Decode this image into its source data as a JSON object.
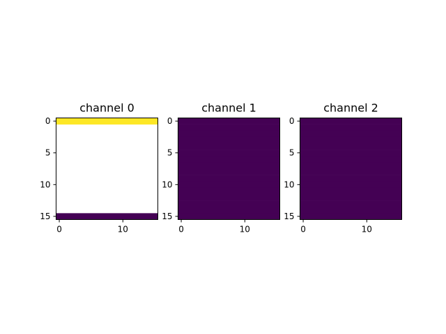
{
  "colors": {
    "colormap": "viridis",
    "low": "#440154",
    "high": "#fde725",
    "axes_frame": "#000000"
  },
  "chart_data": [
    {
      "type": "heatmap",
      "title": "channel 0",
      "xticks": [
        0,
        10
      ],
      "yticks": [
        0,
        5,
        10,
        15
      ],
      "xlim": [
        -0.5,
        15.5
      ],
      "ylim": [
        15.5,
        -0.5
      ],
      "n_rows": 16,
      "n_cols": 16,
      "rows": [
        {
          "row": 0,
          "value": "high"
        },
        {
          "row": 1,
          "value": "nan"
        },
        {
          "row": 2,
          "value": "nan"
        },
        {
          "row": 3,
          "value": "nan"
        },
        {
          "row": 4,
          "value": "nan"
        },
        {
          "row": 5,
          "value": "nan"
        },
        {
          "row": 6,
          "value": "nan"
        },
        {
          "row": 7,
          "value": "nan"
        },
        {
          "row": 8,
          "value": "nan"
        },
        {
          "row": 9,
          "value": "nan"
        },
        {
          "row": 10,
          "value": "nan"
        },
        {
          "row": 11,
          "value": "nan"
        },
        {
          "row": 12,
          "value": "nan"
        },
        {
          "row": 13,
          "value": "nan"
        },
        {
          "row": 14,
          "value": "nan"
        },
        {
          "row": 15,
          "value": "low"
        }
      ]
    },
    {
      "type": "heatmap",
      "title": "channel 1",
      "xticks": [
        0,
        10
      ],
      "yticks": [
        0,
        5,
        10,
        15
      ],
      "xlim": [
        -0.5,
        15.5
      ],
      "ylim": [
        15.5,
        -0.5
      ],
      "n_rows": 16,
      "n_cols": 16,
      "uniform_value": "low"
    },
    {
      "type": "heatmap",
      "title": "channel 2",
      "xticks": [
        0,
        10
      ],
      "yticks": [
        0,
        5,
        10,
        15
      ],
      "xlim": [
        -0.5,
        15.5
      ],
      "ylim": [
        15.5,
        -0.5
      ],
      "n_rows": 16,
      "n_cols": 16,
      "uniform_value": "low"
    }
  ]
}
